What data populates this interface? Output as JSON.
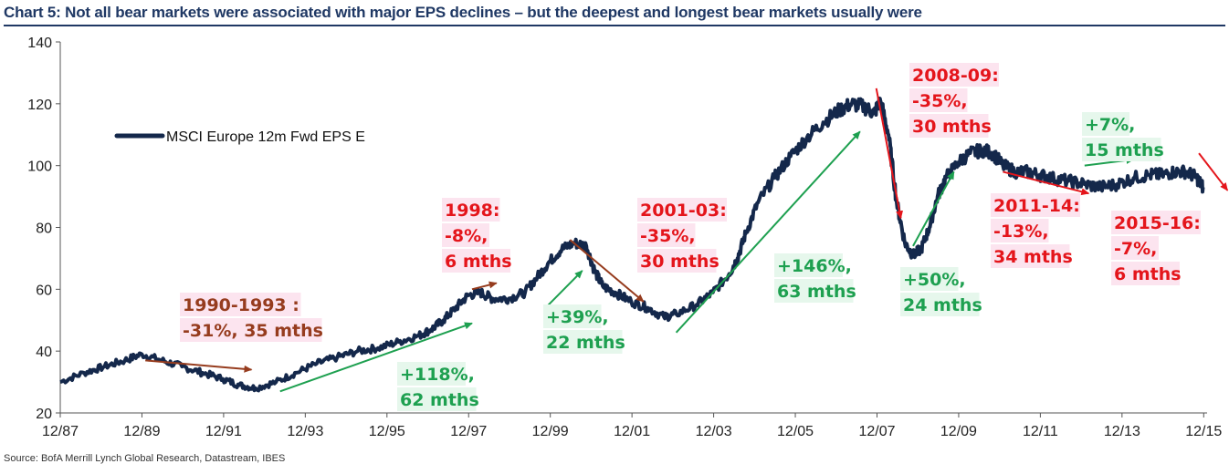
{
  "title": "Chart 5: Not all bear markets were associated with major EPS declines – but the deepest and longest bear markets usually were",
  "source": "Source: BofA Merrill Lynch Global Research, Datastream, IBES",
  "colors": {
    "line": "#14284b",
    "red": "#e4151b",
    "brown": "#963c1e",
    "green": "#1ea050",
    "pink_bg": "#fce4ef",
    "green_bg": "#e6f7ec"
  },
  "chart_data": {
    "type": "line",
    "title": "Chart 5: Not all bear markets were associated with major EPS declines – but the deepest and longest bear markets usually were",
    "xlabel": "",
    "ylabel": "",
    "ylim": [
      20,
      140
    ],
    "yticks": [
      20,
      40,
      60,
      80,
      100,
      120,
      140
    ],
    "xlim": [
      1987.917,
      2016.0
    ],
    "xtick_labels": [
      "12/87",
      "12/89",
      "12/91",
      "12/93",
      "12/95",
      "12/97",
      "12/99",
      "12/01",
      "12/03",
      "12/05",
      "12/07",
      "12/09",
      "12/11",
      "12/13",
      "12/15"
    ],
    "xtick_values": [
      1987.917,
      1989.917,
      1991.917,
      1993.917,
      1995.917,
      1997.917,
      1999.917,
      2001.917,
      2003.917,
      2005.917,
      2007.917,
      2009.917,
      2011.917,
      2013.917,
      2015.917
    ],
    "legend": {
      "label": "MSCI Europe 12m Fwd EPS E",
      "position": "top-left"
    },
    "series": [
      {
        "name": "MSCI Europe 12m Fwd EPS E",
        "x": [
          1987.917,
          1988.5,
          1989.0,
          1989.5,
          1989.917,
          1990.4,
          1990.9,
          1991.4,
          1991.9,
          1992.3,
          1992.7,
          1993.2,
          1993.7,
          1994.2,
          1994.7,
          1995.2,
          1995.7,
          1996.2,
          1996.7,
          1997.0,
          1997.3,
          1997.6,
          1997.9,
          1998.2,
          1998.5,
          1998.9,
          1999.3,
          1999.6,
          1999.9,
          2000.2,
          2000.5,
          2000.8,
          2001.0,
          2001.2,
          2001.5,
          2001.9,
          2002.3,
          2002.7,
          2003.0,
          2003.5,
          2003.9,
          2004.3,
          2004.5,
          2004.7,
          2005.0,
          2005.4,
          2005.8,
          2006.2,
          2006.6,
          2007.0,
          2007.3,
          2007.6,
          2007.85,
          2008.0,
          2008.2,
          2008.4,
          2008.6,
          2008.8,
          2009.0,
          2009.2,
          2009.4,
          2009.6,
          2009.9,
          2010.2,
          2010.5,
          2010.75,
          2011.0,
          2011.3,
          2011.6,
          2011.9,
          2012.2,
          2012.6,
          2013.0,
          2013.4,
          2013.8,
          2014.2,
          2014.6,
          2014.9,
          2015.2,
          2015.5,
          2015.75,
          2015.9
        ],
        "values": [
          30,
          33,
          35,
          37,
          39,
          37,
          35,
          33,
          31,
          29,
          28,
          30,
          33,
          36,
          38,
          40,
          41,
          43,
          45,
          47,
          50,
          54,
          58,
          59,
          57,
          57,
          59,
          64,
          69,
          73,
          75,
          74,
          66,
          61,
          59,
          56,
          54,
          51,
          52,
          55,
          59,
          65,
          70,
          78,
          88,
          96,
          103,
          109,
          114,
          118,
          120,
          119,
          117,
          121,
          110,
          88,
          75,
          71,
          73,
          80,
          90,
          96,
          101,
          104,
          105,
          104,
          100,
          98,
          98,
          97,
          96,
          95,
          94,
          93,
          94,
          96,
          97,
          97,
          98,
          98,
          96,
          93
        ]
      }
    ],
    "annotations": [
      {
        "name": "label-1990-93",
        "color": "brown",
        "bg": "pink",
        "lines": [
          "1990-1993 :",
          "-31%, 35 mths"
        ]
      },
      {
        "name": "label-1998",
        "color": "red",
        "bg": "pink",
        "lines": [
          "1998:",
          "-8%,",
          "6 mths"
        ]
      },
      {
        "name": "label-2001-03",
        "color": "red",
        "bg": "pink",
        "lines": [
          "2001-03:",
          "-35%,",
          "30 mths"
        ]
      },
      {
        "name": "label-2008-09",
        "color": "red",
        "bg": "pink",
        "lines": [
          "2008-09:",
          "-35%,",
          "30 mths"
        ]
      },
      {
        "name": "label-2011-14",
        "color": "red",
        "bg": "pink",
        "lines": [
          "2011-14:",
          "-13%,",
          "34 mths"
        ]
      },
      {
        "name": "label-2015-16",
        "color": "red",
        "bg": "pink",
        "lines": [
          "2015-16:",
          "-7%,",
          "6 mths"
        ]
      },
      {
        "name": "label-118",
        "color": "green",
        "bg": "green",
        "lines": [
          "+118%,",
          "62 mths"
        ]
      },
      {
        "name": "label-39",
        "color": "green",
        "bg": "green",
        "lines": [
          "+39%,",
          "22 mths"
        ]
      },
      {
        "name": "label-146",
        "color": "green",
        "bg": "green",
        "lines": [
          "+146%,",
          "63 mths"
        ]
      },
      {
        "name": "label-50",
        "color": "green",
        "bg": "green",
        "lines": [
          "+50%,",
          "24 mths"
        ]
      },
      {
        "name": "label-7",
        "color": "green",
        "bg": "green",
        "lines": [
          "+7%,",
          "15 mths"
        ]
      }
    ],
    "arrows": [
      {
        "name": "arrow-1990-93",
        "color": "brown",
        "from": [
          1990.0,
          37
        ],
        "to": [
          1992.6,
          34
        ]
      },
      {
        "name": "arrow-1998",
        "color": "brown",
        "from": [
          1998.0,
          60
        ],
        "to": [
          1998.6,
          62
        ]
      },
      {
        "name": "arrow-2001-03",
        "color": "brown",
        "from": [
          2000.4,
          76
        ],
        "to": [
          2002.2,
          56
        ]
      },
      {
        "name": "arrow-2008-09",
        "color": "red",
        "from": [
          2007.9,
          125
        ],
        "to": [
          2008.5,
          83
        ]
      },
      {
        "name": "arrow-2011-14",
        "color": "red",
        "from": [
          2011.0,
          98
        ],
        "to": [
          2013.1,
          91
        ]
      },
      {
        "name": "arrow-2015-16",
        "color": "red",
        "from": [
          2015.8,
          104
        ],
        "to": [
          2016.5,
          92
        ]
      },
      {
        "name": "arrow-118",
        "color": "green",
        "from": [
          1993.3,
          27
        ],
        "to": [
          1998.0,
          49
        ]
      },
      {
        "name": "arrow-39",
        "color": "green",
        "from": [
          1999.8,
          54
        ],
        "to": [
          2000.7,
          66
        ]
      },
      {
        "name": "arrow-146",
        "color": "green",
        "from": [
          2003.0,
          46
        ],
        "to": [
          2007.5,
          111
        ]
      },
      {
        "name": "arrow-50",
        "color": "green",
        "from": [
          2008.8,
          74
        ],
        "to": [
          2009.8,
          98
        ]
      },
      {
        "name": "arrow-7",
        "color": "green",
        "from": [
          2013.0,
          100
        ],
        "to": [
          2014.2,
          102
        ]
      }
    ]
  }
}
